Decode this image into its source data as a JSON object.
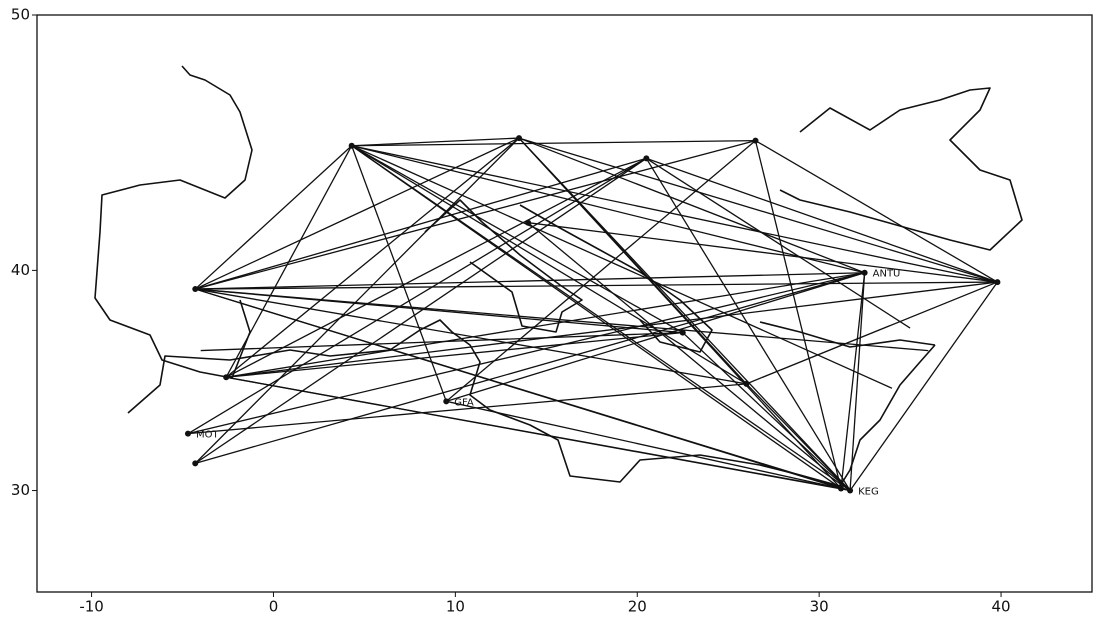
{
  "chart_data": {
    "type": "routes",
    "projection": "mercator",
    "xlim": [
      -13,
      45
    ],
    "ylim": [
      25,
      50
    ],
    "xticks": [
      -10,
      0,
      10,
      20,
      30,
      40
    ],
    "yticks": [
      30,
      40,
      50
    ],
    "color": "#111111",
    "points": {
      "x": [
        -4.7,
        9.5,
        31.7,
        32.5,
        4.3,
        -4.3,
        13.5,
        20.5,
        26.0,
        39.8,
        -2.6,
        26.5,
        -4.3,
        31.2,
        22.5,
        14.0
      ],
      "y": [
        32.7,
        34.2,
        30.0,
        39.9,
        45.1,
        39.2,
        45.4,
        44.6,
        35.0,
        39.5,
        35.3,
        45.3,
        31.3,
        30.1,
        37.3,
        42.0
      ],
      "labels": [
        "MOT",
        "GFA",
        "KEG",
        "ANTU",
        null,
        null,
        null,
        null,
        null,
        null,
        null,
        null,
        null,
        null,
        null,
        null
      ]
    },
    "routes": [
      {
        "x": [
          -4.3,
          32.5
        ],
        "y": [
          39.2,
          39.9
        ]
      },
      {
        "x": [
          -4.3,
          39.8
        ],
        "y": [
          39.2,
          39.5
        ]
      },
      {
        "x": [
          -4.3,
          31.7
        ],
        "y": [
          39.2,
          30.0
        ]
      },
      {
        "x": [
          -4.3,
          4.3
        ],
        "y": [
          39.2,
          45.1
        ]
      },
      {
        "x": [
          -4.3,
          13.5
        ],
        "y": [
          39.2,
          45.4
        ]
      },
      {
        "x": [
          -4.3,
          20.5
        ],
        "y": [
          39.2,
          44.6
        ]
      },
      {
        "x": [
          -4.3,
          26.0
        ],
        "y": [
          39.2,
          35.0
        ]
      },
      {
        "x": [
          -4.3,
          22.5
        ],
        "y": [
          39.2,
          37.3
        ]
      },
      {
        "x": [
          -4.3,
          31.2
        ],
        "y": [
          39.2,
          30.1
        ]
      },
      {
        "x": [
          -4.3,
          26.5
        ],
        "y": [
          39.2,
          45.3
        ]
      },
      {
        "x": [
          4.3,
          31.7
        ],
        "y": [
          45.1,
          30.0
        ]
      },
      {
        "x": [
          4.3,
          32.5
        ],
        "y": [
          45.1,
          39.9
        ]
      },
      {
        "x": [
          4.3,
          26.0
        ],
        "y": [
          45.1,
          35.0
        ]
      },
      {
        "x": [
          4.3,
          22.5
        ],
        "y": [
          45.1,
          37.3
        ]
      },
      {
        "x": [
          4.3,
          39.8
        ],
        "y": [
          45.1,
          39.5
        ]
      },
      {
        "x": [
          4.3,
          -2.6
        ],
        "y": [
          45.1,
          35.3
        ]
      },
      {
        "x": [
          4.3,
          9.5
        ],
        "y": [
          45.1,
          34.2
        ]
      },
      {
        "x": [
          4.3,
          26.5
        ],
        "y": [
          45.1,
          45.3
        ]
      },
      {
        "x": [
          4.3,
          13.5
        ],
        "y": [
          45.1,
          45.4
        ]
      },
      {
        "x": [
          13.5,
          31.7
        ],
        "y": [
          45.4,
          30.0
        ]
      },
      {
        "x": [
          13.5,
          26.0
        ],
        "y": [
          45.4,
          35.0
        ]
      },
      {
        "x": [
          13.5,
          -2.6
        ],
        "y": [
          45.4,
          35.3
        ]
      },
      {
        "x": [
          13.5,
          32.5
        ],
        "y": [
          45.4,
          39.9
        ]
      },
      {
        "x": [
          13.5,
          39.8
        ],
        "y": [
          45.4,
          39.5
        ]
      },
      {
        "x": [
          20.5,
          -4.3
        ],
        "y": [
          44.6,
          31.3
        ]
      },
      {
        "x": [
          20.5,
          -2.6
        ],
        "y": [
          44.6,
          35.3
        ]
      },
      {
        "x": [
          20.5,
          31.7
        ],
        "y": [
          44.6,
          30.0
        ]
      },
      {
        "x": [
          20.5,
          -4.7
        ],
        "y": [
          44.6,
          32.7
        ]
      },
      {
        "x": [
          20.5,
          39.8
        ],
        "y": [
          44.6,
          39.5
        ]
      },
      {
        "x": [
          26.5,
          39.8
        ],
        "y": [
          45.3,
          39.5
        ]
      },
      {
        "x": [
          26.5,
          9.5
        ],
        "y": [
          45.3,
          34.2
        ]
      },
      {
        "x": [
          26.5,
          31.2
        ],
        "y": [
          45.3,
          30.1
        ]
      },
      {
        "x": [
          -2.6,
          32.5
        ],
        "y": [
          35.3,
          39.9
        ]
      },
      {
        "x": [
          -2.6,
          31.7
        ],
        "y": [
          35.3,
          30.0
        ]
      },
      {
        "x": [
          -2.6,
          39.8
        ],
        "y": [
          35.3,
          39.5
        ]
      },
      {
        "x": [
          -2.6,
          22.5
        ],
        "y": [
          35.3,
          37.3
        ]
      },
      {
        "x": [
          -4.3,
          32.5
        ],
        "y": [
          31.3,
          39.9
        ]
      },
      {
        "x": [
          -4.3,
          13.5
        ],
        "y": [
          31.3,
          45.4
        ]
      },
      {
        "x": [
          9.5,
          32.5
        ],
        "y": [
          34.2,
          39.9
        ]
      },
      {
        "x": [
          9.5,
          31.7
        ],
        "y": [
          34.2,
          30.0
        ]
      },
      {
        "x": [
          -4.7,
          26.0
        ],
        "y": [
          32.7,
          35.0
        ]
      },
      {
        "x": [
          -4.7,
          32.5
        ],
        "y": [
          32.7,
          39.9
        ]
      },
      {
        "x": [
          32.5,
          31.7
        ],
        "y": [
          39.9,
          30.0
        ]
      },
      {
        "x": [
          32.5,
          31.2
        ],
        "y": [
          39.9,
          30.1
        ]
      },
      {
        "x": [
          39.8,
          31.7
        ],
        "y": [
          39.5,
          30.0
        ]
      },
      {
        "x": [
          39.8,
          26.0
        ],
        "y": [
          39.5,
          35.0
        ]
      },
      {
        "x": [
          26.0,
          31.7
        ],
        "y": [
          35.0,
          30.0
        ]
      },
      {
        "x": [
          22.5,
          31.7
        ],
        "y": [
          37.3,
          30.0
        ]
      },
      {
        "x": [
          14.0,
          31.7
        ],
        "y": [
          42.0,
          30.0
        ]
      },
      {
        "x": [
          14.0,
          39.8
        ],
        "y": [
          42.0,
          39.5
        ]
      },
      {
        "x": [
          31.2,
          -2.6
        ],
        "y": [
          30.1,
          35.3
        ]
      },
      {
        "x": [
          4.3,
          31.2
        ],
        "y": [
          45.1,
          30.1
        ]
      },
      {
        "x": [
          13.5,
          31.2
        ],
        "y": [
          45.4,
          30.1
        ]
      },
      {
        "x": [
          20.5,
          35.0
        ],
        "y": [
          44.6,
          37.5
        ]
      },
      {
        "x": [
          -4.3,
          36.0
        ],
        "y": [
          39.2,
          36.5
        ]
      },
      {
        "x": [
          4.3,
          34.0
        ],
        "y": [
          45.1,
          34.8
        ]
      },
      {
        "x": [
          -4.0,
          22.5
        ],
        "y": [
          36.5,
          37.3
        ]
      }
    ]
  }
}
